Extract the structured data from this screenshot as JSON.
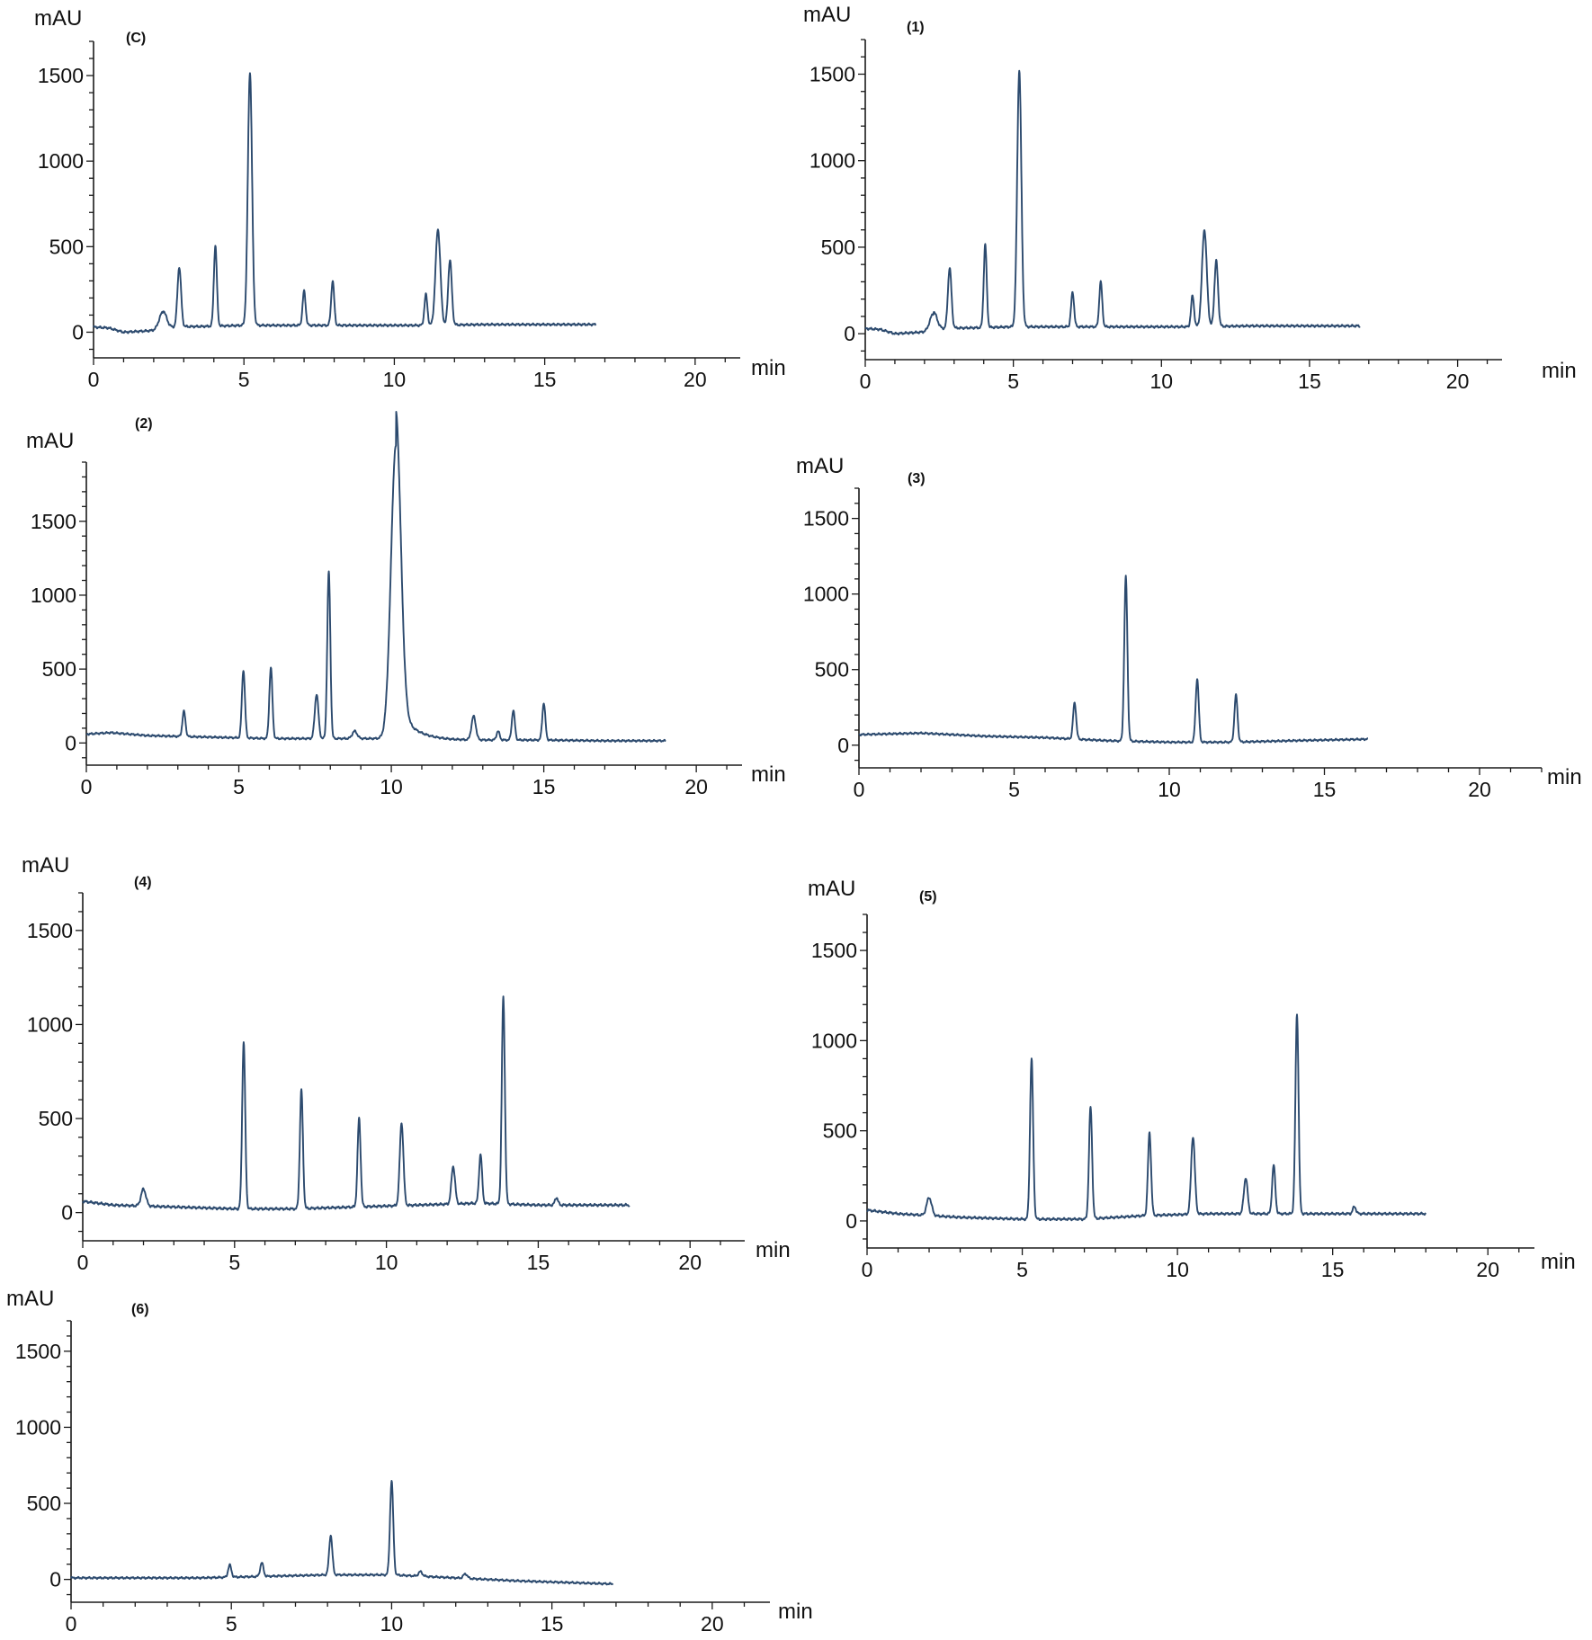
{
  "chart_data": [
    {
      "type": "line",
      "panel_label": "(C)",
      "ylabel": "mAU",
      "xlabel": "min",
      "xlim": [
        0,
        21.5
      ],
      "ylim": [
        -150,
        1700
      ],
      "x_ticks": [
        0,
        5,
        10,
        15,
        20
      ],
      "y_ticks": [
        0,
        500,
        1000,
        1500
      ],
      "x_end": 16.7,
      "baseline": [
        [
          0,
          30
        ],
        [
          0.5,
          25
        ],
        [
          1,
          0
        ],
        [
          2,
          10
        ],
        [
          3,
          30
        ],
        [
          5,
          40
        ],
        [
          8,
          40
        ],
        [
          11,
          40
        ],
        [
          13,
          45
        ],
        [
          16.7,
          45
        ]
      ],
      "peaks": [
        [
          2.3,
          100,
          0.12
        ],
        [
          2.85,
          350,
          0.06
        ],
        [
          4.05,
          470,
          0.05
        ],
        [
          5.2,
          1480,
          0.07
        ],
        [
          7.0,
          200,
          0.05
        ],
        [
          7.95,
          260,
          0.05
        ],
        [
          11.05,
          180,
          0.05
        ],
        [
          11.45,
          560,
          0.08
        ],
        [
          11.85,
          380,
          0.06
        ]
      ]
    },
    {
      "type": "line",
      "panel_label": "(1)",
      "ylabel": "mAU",
      "xlabel": "min",
      "xlim": [
        0,
        21.5
      ],
      "ylim": [
        -150,
        1700
      ],
      "x_ticks": [
        0,
        5,
        10,
        15,
        20
      ],
      "y_ticks": [
        0,
        500,
        1000,
        1500
      ],
      "x_end": 16.7,
      "baseline": [
        [
          0,
          30
        ],
        [
          0.5,
          25
        ],
        [
          1,
          0
        ],
        [
          2,
          10
        ],
        [
          3,
          30
        ],
        [
          5,
          40
        ],
        [
          8,
          40
        ],
        [
          11,
          40
        ],
        [
          13,
          45
        ],
        [
          16.7,
          45
        ]
      ],
      "peaks": [
        [
          2.3,
          100,
          0.12
        ],
        [
          2.85,
          350,
          0.06
        ],
        [
          4.05,
          480,
          0.05
        ],
        [
          5.2,
          1480,
          0.07
        ],
        [
          7.0,
          200,
          0.05
        ],
        [
          7.95,
          260,
          0.05
        ],
        [
          11.05,
          180,
          0.05
        ],
        [
          11.45,
          560,
          0.08
        ],
        [
          11.85,
          380,
          0.06
        ]
      ]
    },
    {
      "type": "line",
      "panel_label": "(2)",
      "ylabel": "mAU",
      "xlabel": "min",
      "xlim": [
        0,
        21.5
      ],
      "ylim": [
        -150,
        1900
      ],
      "x_ticks": [
        0,
        5,
        10,
        15,
        20
      ],
      "y_ticks": [
        0,
        500,
        1000,
        1500
      ],
      "x_end": 19.0,
      "baseline": [
        [
          0,
          60
        ],
        [
          0.8,
          70
        ],
        [
          2,
          50
        ],
        [
          4,
          40
        ],
        [
          6,
          30
        ],
        [
          8,
          30
        ],
        [
          10,
          30
        ],
        [
          12,
          20
        ],
        [
          15,
          20
        ],
        [
          17,
          15
        ],
        [
          19,
          15
        ]
      ],
      "peaks": [
        [
          3.2,
          170,
          0.05
        ],
        [
          5.15,
          460,
          0.05
        ],
        [
          6.05,
          480,
          0.05
        ],
        [
          7.55,
          300,
          0.06
        ],
        [
          7.95,
          1130,
          0.05
        ],
        [
          8.8,
          50,
          0.08
        ],
        [
          10.15,
          1980,
          0.16
        ],
        [
          12.7,
          160,
          0.07
        ],
        [
          13.5,
          60,
          0.05
        ],
        [
          14.0,
          200,
          0.05
        ],
        [
          15.0,
          250,
          0.05
        ]
      ]
    },
    {
      "type": "line",
      "panel_label": "(3)",
      "ylabel": "mAU",
      "xlabel": "min",
      "xlim": [
        0,
        22
      ],
      "ylim": [
        -150,
        1700
      ],
      "x_ticks": [
        0,
        5,
        10,
        15,
        20
      ],
      "y_ticks": [
        0,
        500,
        1000,
        1500
      ],
      "x_end": 16.4,
      "baseline": [
        [
          0,
          70
        ],
        [
          2,
          80
        ],
        [
          4,
          60
        ],
        [
          6,
          50
        ],
        [
          8,
          30
        ],
        [
          10,
          20
        ],
        [
          12,
          20
        ],
        [
          14,
          30
        ],
        [
          16.4,
          40
        ]
      ],
      "peaks": [
        [
          6.95,
          240,
          0.05
        ],
        [
          8.6,
          1090,
          0.05
        ],
        [
          10.9,
          420,
          0.05
        ],
        [
          12.15,
          310,
          0.05
        ]
      ]
    },
    {
      "type": "line",
      "panel_label": "(4)",
      "ylabel": "mAU",
      "xlabel": "min",
      "xlim": [
        0,
        21.8
      ],
      "ylim": [
        -150,
        1700
      ],
      "x_ticks": [
        0,
        5,
        10,
        15,
        20
      ],
      "y_ticks": [
        0,
        500,
        1000,
        1500
      ],
      "x_end": 18.0,
      "baseline": [
        [
          0,
          60
        ],
        [
          1,
          40
        ],
        [
          3,
          30
        ],
        [
          5,
          20
        ],
        [
          7,
          20
        ],
        [
          9,
          30
        ],
        [
          11,
          40
        ],
        [
          13,
          50
        ],
        [
          15,
          40
        ],
        [
          18,
          40
        ]
      ],
      "peaks": [
        [
          2.0,
          90,
          0.08
        ],
        [
          5.3,
          890,
          0.05
        ],
        [
          7.2,
          630,
          0.05
        ],
        [
          9.1,
          470,
          0.05
        ],
        [
          10.5,
          440,
          0.06
        ],
        [
          12.2,
          200,
          0.06
        ],
        [
          13.1,
          260,
          0.05
        ],
        [
          13.85,
          1100,
          0.05
        ],
        [
          15.6,
          40,
          0.05
        ]
      ]
    },
    {
      "type": "line",
      "panel_label": "(5)",
      "ylabel": "mAU",
      "xlabel": "min",
      "xlim": [
        0,
        21.5
      ],
      "ylim": [
        -150,
        1700
      ],
      "x_ticks": [
        0,
        5,
        10,
        15,
        20
      ],
      "y_ticks": [
        0,
        500,
        1000,
        1500
      ],
      "x_end": 18.0,
      "baseline": [
        [
          0,
          60
        ],
        [
          1,
          40
        ],
        [
          3,
          20
        ],
        [
          5,
          10
        ],
        [
          7,
          10
        ],
        [
          9,
          30
        ],
        [
          11,
          40
        ],
        [
          13,
          40
        ],
        [
          15,
          40
        ],
        [
          18,
          40
        ]
      ],
      "peaks": [
        [
          2.0,
          100,
          0.08
        ],
        [
          5.3,
          890,
          0.05
        ],
        [
          7.2,
          620,
          0.05
        ],
        [
          9.1,
          460,
          0.05
        ],
        [
          10.5,
          430,
          0.06
        ],
        [
          12.2,
          200,
          0.06
        ],
        [
          13.1,
          270,
          0.05
        ],
        [
          13.85,
          1110,
          0.05
        ],
        [
          15.7,
          40,
          0.05
        ]
      ]
    },
    {
      "type": "line",
      "panel_label": "(6)",
      "ylabel": "mAU",
      "xlabel": "min",
      "xlim": [
        0,
        21.8
      ],
      "ylim": [
        -150,
        1700
      ],
      "x_ticks": [
        0,
        5,
        10,
        15,
        20
      ],
      "y_ticks": [
        0,
        500,
        1000,
        1500
      ],
      "x_end": 16.9,
      "baseline": [
        [
          0,
          10
        ],
        [
          2,
          10
        ],
        [
          4,
          10
        ],
        [
          6,
          20
        ],
        [
          8,
          30
        ],
        [
          10,
          30
        ],
        [
          12,
          10
        ],
        [
          14,
          -10
        ],
        [
          16.9,
          -30
        ]
      ],
      "peaks": [
        [
          4.95,
          80,
          0.05
        ],
        [
          5.95,
          90,
          0.05
        ],
        [
          8.1,
          260,
          0.05
        ],
        [
          10.0,
          620,
          0.05
        ],
        [
          10.9,
          30,
          0.06
        ],
        [
          12.3,
          30,
          0.06
        ]
      ]
    }
  ]
}
